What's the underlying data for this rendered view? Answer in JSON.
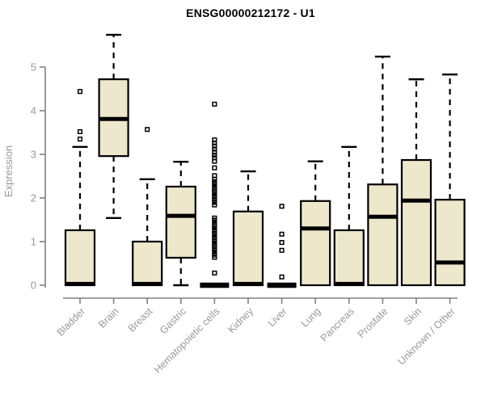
{
  "chart_data": {
    "type": "boxplot",
    "title": "ENSG00000212172 - U1",
    "ylabel": "Expression",
    "xlabel": "",
    "ylim": [
      0,
      5
    ],
    "yticks": [
      0,
      1,
      2,
      3,
      4,
      5
    ],
    "grid": false,
    "legend": "none",
    "axis_color": "#808080",
    "label_color": "#999999",
    "box_fill": "#EDE7CC",
    "box_stroke": "#000000",
    "categories": [
      "Bladder",
      "Brain",
      "Breast",
      "Gastric",
      "Hematopoietic cells",
      "Kidney",
      "Liver",
      "Lung",
      "Pancreas",
      "Prostate",
      "Skin",
      "Unknown / Other"
    ],
    "series": [
      {
        "category": "Bladder",
        "whisker_low": 0,
        "q1": 0,
        "median": 0.03,
        "q3": 1.26,
        "whisker_high": 3.17,
        "outliers": [
          3.35,
          3.52,
          4.44
        ]
      },
      {
        "category": "Brain",
        "whisker_low": 1.54,
        "q1": 2.96,
        "median": 3.81,
        "q3": 4.72,
        "whisker_high": 5.74,
        "outliers": []
      },
      {
        "category": "Breast",
        "whisker_low": 0,
        "q1": 0,
        "median": 0.03,
        "q3": 1.0,
        "whisker_high": 2.43,
        "outliers": [
          3.57
        ]
      },
      {
        "category": "Gastric",
        "whisker_low": 0,
        "q1": 0.63,
        "median": 1.59,
        "q3": 2.26,
        "whisker_high": 2.83,
        "outliers": []
      },
      {
        "category": "Hematopoietic cells",
        "whisker_low": 0,
        "q1": 0,
        "median": 0,
        "q3": 0,
        "whisker_high": 0,
        "outliers": [
          4.15,
          3.33,
          3.26,
          3.19,
          3.12,
          3.05,
          2.98,
          2.92,
          2.84,
          2.69,
          2.51,
          2.43,
          2.37,
          2.32,
          2.26,
          2.21,
          2.16,
          2.11,
          2.05,
          2.0,
          1.95,
          1.9,
          1.84,
          1.54,
          1.49,
          1.43,
          1.38,
          1.33,
          1.27,
          1.22,
          1.17,
          1.11,
          1.06,
          1.01,
          0.95,
          0.9,
          0.85,
          0.8,
          0.74,
          0.69,
          0.64,
          0.28
        ]
      },
      {
        "category": "Kidney",
        "whisker_low": 0,
        "q1": 0,
        "median": 0.03,
        "q3": 1.69,
        "whisker_high": 2.61,
        "outliers": []
      },
      {
        "category": "Liver",
        "whisker_low": 0,
        "q1": 0,
        "median": 0,
        "q3": 0,
        "whisker_high": 0,
        "outliers": [
          1.81,
          1.17,
          0.98,
          0.8,
          0.19
        ]
      },
      {
        "category": "Lung",
        "whisker_low": 0,
        "q1": 0,
        "median": 1.3,
        "q3": 1.93,
        "whisker_high": 2.84,
        "outliers": []
      },
      {
        "category": "Pancreas",
        "whisker_low": 0,
        "q1": 0,
        "median": 0.03,
        "q3": 1.26,
        "whisker_high": 3.17,
        "outliers": []
      },
      {
        "category": "Prostate",
        "whisker_low": 0,
        "q1": 0,
        "median": 1.57,
        "q3": 2.31,
        "whisker_high": 5.24,
        "outliers": []
      },
      {
        "category": "Skin",
        "whisker_low": 0,
        "q1": 0,
        "median": 1.94,
        "q3": 2.87,
        "whisker_high": 4.72,
        "outliers": []
      },
      {
        "category": "Unknown / Other",
        "whisker_low": 0,
        "q1": 0,
        "median": 0.52,
        "q3": 1.96,
        "whisker_high": 4.83,
        "outliers": []
      }
    ]
  }
}
